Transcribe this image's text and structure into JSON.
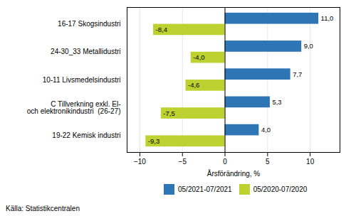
{
  "chart_data": {
    "type": "bar",
    "orientation": "horizontal",
    "categories": [
      "19-22 Kemisk industri",
      "C Tillverkning exkl. El-\noch elektronikindustri  (26-27)",
      "10-11 Livsmedelsindustri",
      "24-30_33 Metallidustri",
      "16-17 Skogsindustri"
    ],
    "series": [
      {
        "name": "05/2021-07/2021",
        "color": "#2e75b6",
        "values": [
          4.0,
          5.3,
          7.7,
          9.0,
          11.0
        ],
        "value_labels": [
          "4,0",
          "5,3",
          "7,7",
          "9,0",
          "11,0"
        ]
      },
      {
        "name": "05/2020-07/2020",
        "color": "#bdd231",
        "values": [
          -9.3,
          -7.5,
          -4.6,
          -4.0,
          -8.4
        ],
        "value_labels": [
          "-9,3",
          "-7,5",
          "-4,6",
          "-4,0",
          "-8,4"
        ]
      }
    ],
    "xlabel": "Årsförändring, %",
    "xlim": [
      -11.5,
      13.5
    ],
    "xticks": [
      -10,
      -5,
      0,
      5,
      10
    ],
    "grid": true,
    "data_labels": true,
    "legend": "bottom",
    "source": "Källa: Statistikcentralen"
  }
}
